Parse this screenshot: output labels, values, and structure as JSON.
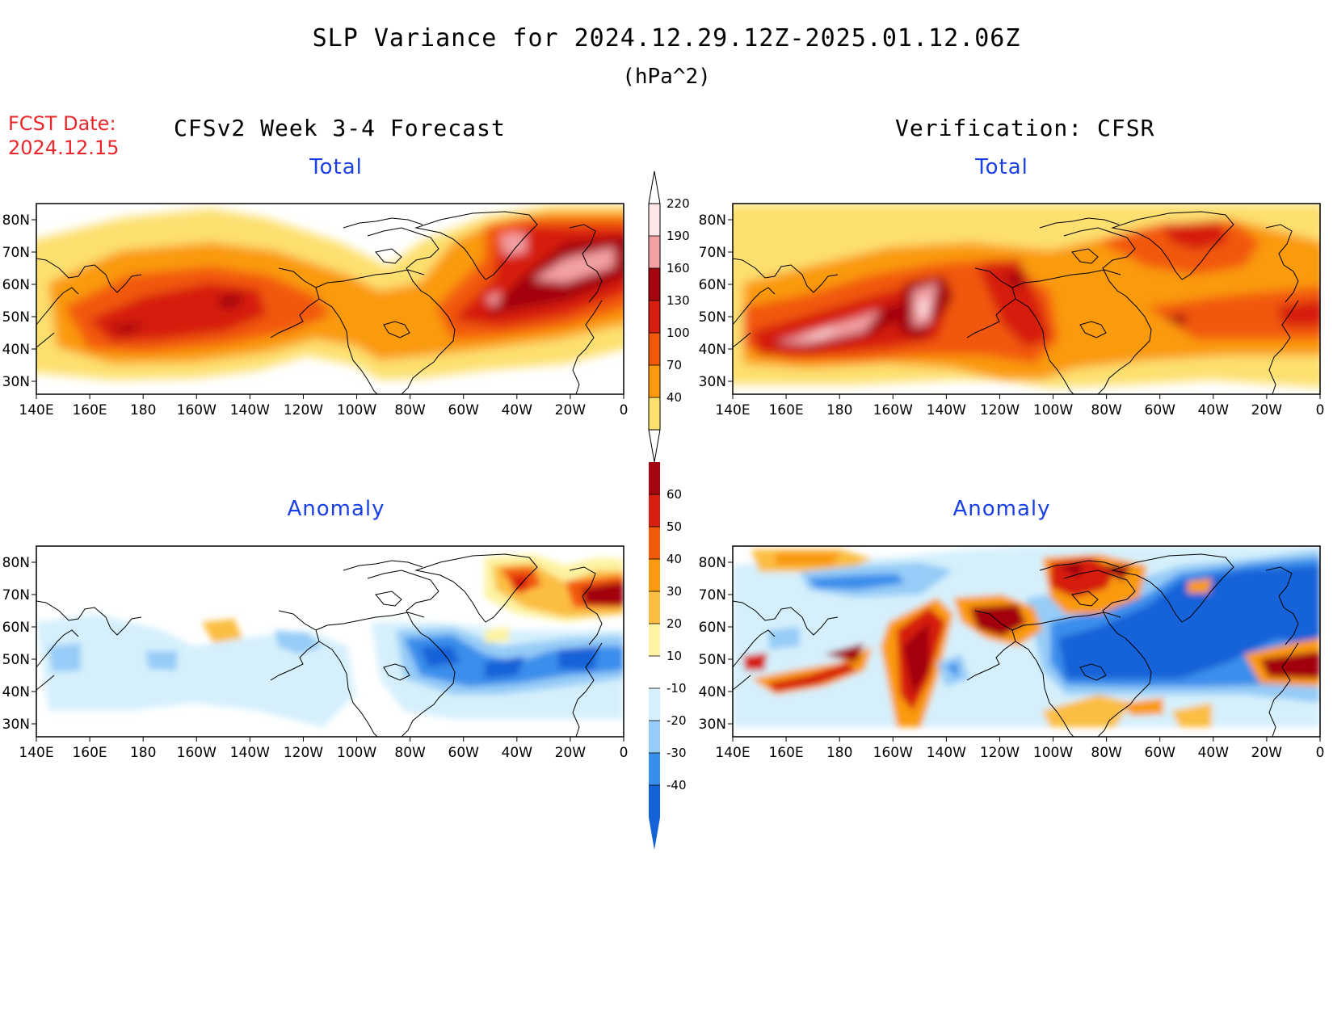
{
  "header": {
    "title": "SLP Variance for 2024.12.29.12Z-2025.01.12.06Z",
    "units": "(hPa^2)",
    "fcst_label": "FCST Date:",
    "fcst_date": "2024.12.15"
  },
  "columns": {
    "left": "CFSv2 Week 3-4 Forecast",
    "right": "Verification: CFSR"
  },
  "panels": {
    "fc_total": "Total",
    "ver_total": "Total",
    "fc_anom": "Anomaly",
    "ver_anom": "Anomaly"
  },
  "lat_ticks": [
    "80N",
    "70N",
    "60N",
    "50N",
    "40N",
    "30N"
  ],
  "lon_ticks": [
    "140E",
    "160E",
    "180",
    "160W",
    "140W",
    "120W",
    "100W",
    "80W",
    "60W",
    "40W",
    "20W",
    "0"
  ],
  "total_scale": {
    "labels": [
      "220",
      "190",
      "160",
      "130",
      "100",
      "70",
      "40"
    ],
    "colors": [
      "#fde6e7",
      "#f3a0a4",
      "#a3060f",
      "#d61f10",
      "#f2590a",
      "#fa9a0e",
      "#fde070"
    ]
  },
  "anom_scale": {
    "labels": [
      "60",
      "50",
      "40",
      "30",
      "20",
      "10",
      "-10",
      "-20",
      "-30",
      "-40"
    ],
    "colors": [
      "#a3060f",
      "#d61f10",
      "#f2590a",
      "#fa9a0e",
      "#fbbe42",
      "#fdf3a2",
      "#ffffff",
      "#d5f0fc",
      "#96ccf7",
      "#3a8eeb",
      "#1562d8"
    ]
  }
}
